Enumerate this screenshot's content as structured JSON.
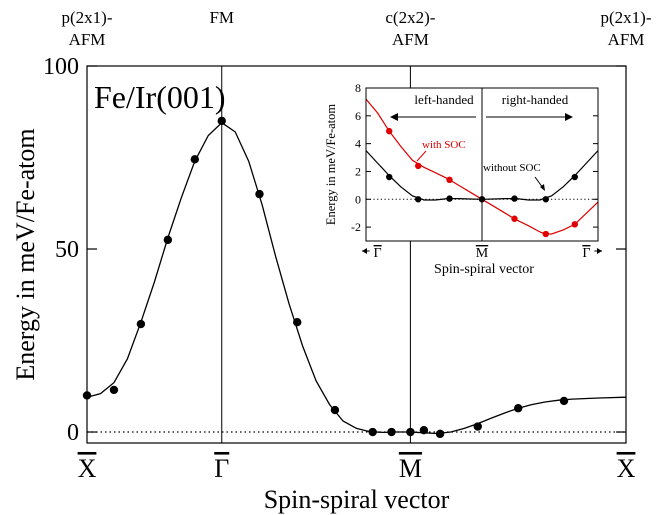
{
  "chart_data": [
    {
      "type": "line",
      "title": "Fe/Ir(001)",
      "xlabel": "Spin-spiral vector",
      "ylabel": "Energy in meV/Fe-atom",
      "ylim": [
        -3,
        100
      ],
      "yticks": [
        {
          "label": "0",
          "value": 0
        },
        {
          "label": "50",
          "value": 50
        },
        {
          "label": "100",
          "value": 100
        }
      ],
      "xlim": [
        0,
        2
      ],
      "xticks": [
        {
          "label": "X",
          "value": 0
        },
        {
          "label": "Γ",
          "value": 0.5
        },
        {
          "label": "M",
          "value": 1.2
        },
        {
          "label": "X",
          "value": 2.0
        }
      ],
      "top_labels": [
        {
          "line1": "p(2x1)-",
          "line2": "AFM",
          "value": 0
        },
        {
          "line1": "FM",
          "line2": "",
          "value": 0.5
        },
        {
          "line1": "c(2x2)-",
          "line2": "AFM",
          "value": 1.2
        },
        {
          "line1": "p(2x1)-",
          "line2": "AFM",
          "value": 2.0
        }
      ],
      "reference_line_y": 0,
      "series": [
        {
          "color": "#000000",
          "points": [
            {
              "x": 0.0,
              "y": 10
            },
            {
              "x": 0.1,
              "y": 11.5
            },
            {
              "x": 0.2,
              "y": 29.5
            },
            {
              "x": 0.3,
              "y": 52.5
            },
            {
              "x": 0.4,
              "y": 74.5
            },
            {
              "x": 0.5,
              "y": 85
            },
            {
              "x": 0.64,
              "y": 65
            },
            {
              "x": 0.78,
              "y": 30
            },
            {
              "x": 0.92,
              "y": 6
            },
            {
              "x": 1.06,
              "y": 0
            },
            {
              "x": 1.13,
              "y": 0
            },
            {
              "x": 1.2,
              "y": 0
            },
            {
              "x": 1.25,
              "y": 0.5
            },
            {
              "x": 1.31,
              "y": -0.5
            },
            {
              "x": 1.45,
              "y": 1.5
            },
            {
              "x": 1.6,
              "y": 6.5
            },
            {
              "x": 1.77,
              "y": 8.5
            }
          ],
          "curve": [
            [
              0.0,
              9.5
            ],
            [
              0.05,
              10.5
            ],
            [
              0.1,
              13.5
            ],
            [
              0.15,
              20
            ],
            [
              0.2,
              30
            ],
            [
              0.25,
              41
            ],
            [
              0.3,
              53
            ],
            [
              0.35,
              64
            ],
            [
              0.4,
              74
            ],
            [
              0.45,
              81
            ],
            [
              0.5,
              84.5
            ],
            [
              0.55,
              82
            ],
            [
              0.6,
              74
            ],
            [
              0.65,
              62
            ],
            [
              0.7,
              48
            ],
            [
              0.75,
              35
            ],
            [
              0.8,
              23.5
            ],
            [
              0.85,
              14
            ],
            [
              0.9,
              7.5
            ],
            [
              0.95,
              3
            ],
            [
              1.0,
              1
            ],
            [
              1.05,
              0.1
            ],
            [
              1.1,
              -0.1
            ],
            [
              1.15,
              0
            ],
            [
              1.2,
              0
            ],
            [
              1.25,
              -0.2
            ],
            [
              1.3,
              -0.4
            ],
            [
              1.35,
              0
            ],
            [
              1.4,
              1
            ],
            [
              1.45,
              2.3
            ],
            [
              1.5,
              3.8
            ],
            [
              1.55,
              5.2
            ],
            [
              1.6,
              6.5
            ],
            [
              1.65,
              7.5
            ],
            [
              1.7,
              8.2
            ],
            [
              1.75,
              8.7
            ],
            [
              1.8,
              9
            ],
            [
              1.9,
              9.3
            ],
            [
              2.0,
              9.5
            ]
          ]
        }
      ]
    },
    {
      "type": "line",
      "title": "",
      "xlabel": "Spin-spiral vector",
      "ylabel": "Energy in meV/Fe-atom",
      "ylim": [
        -3,
        8
      ],
      "yticks": [
        {
          "label": "8",
          "value": 8
        },
        {
          "label": "6",
          "value": 6
        },
        {
          "label": "4",
          "value": 4
        },
        {
          "label": "2",
          "value": 2
        },
        {
          "label": "0",
          "value": 0
        },
        {
          "label": "-2",
          "value": -2
        }
      ],
      "xlim": [
        -1,
        1
      ],
      "xticks": [
        {
          "label": "Γ",
          "value": -0.9
        },
        {
          "label": "M",
          "value": 0
        },
        {
          "label": "Γ",
          "value": 0.9
        }
      ],
      "region_labels": [
        {
          "text": "left-handed",
          "value": -0.52
        },
        {
          "text": "right-handed",
          "value": 0.52
        }
      ],
      "reference_line_y": 0,
      "series": [
        {
          "name": "with SOC",
          "color": "#e00000",
          "points": [
            {
              "x": -0.8,
              "y": 4.9
            },
            {
              "x": -0.55,
              "y": 2.4
            },
            {
              "x": -0.28,
              "y": 1.4
            },
            {
              "x": 0.0,
              "y": 0.0
            },
            {
              "x": 0.28,
              "y": -1.4
            },
            {
              "x": 0.55,
              "y": -2.5
            },
            {
              "x": 0.8,
              "y": -1.8
            }
          ],
          "curve": [
            [
              -1.0,
              7.2
            ],
            [
              -0.9,
              6.2
            ],
            [
              -0.8,
              4.9
            ],
            [
              -0.7,
              3.8
            ],
            [
              -0.6,
              2.8
            ],
            [
              -0.5,
              2.3
            ],
            [
              -0.4,
              1.9
            ],
            [
              -0.3,
              1.5
            ],
            [
              -0.2,
              1.0
            ],
            [
              -0.1,
              0.5
            ],
            [
              0.0,
              0.0
            ],
            [
              0.1,
              -0.5
            ],
            [
              0.2,
              -1.0
            ],
            [
              0.3,
              -1.5
            ],
            [
              0.4,
              -1.9
            ],
            [
              0.5,
              -2.35
            ],
            [
              0.55,
              -2.5
            ],
            [
              0.6,
              -2.5
            ],
            [
              0.7,
              -2.2
            ],
            [
              0.8,
              -1.8
            ],
            [
              0.9,
              -1.0
            ],
            [
              1.0,
              -0.2
            ]
          ]
        },
        {
          "name": "without SOC",
          "color": "#000000",
          "points": [
            {
              "x": -0.8,
              "y": 1.6
            },
            {
              "x": -0.55,
              "y": 0.0
            },
            {
              "x": -0.28,
              "y": 0.05
            },
            {
              "x": 0.0,
              "y": 0.0
            },
            {
              "x": 0.28,
              "y": 0.05
            },
            {
              "x": 0.55,
              "y": 0.0
            },
            {
              "x": 0.8,
              "y": 1.6
            }
          ],
          "curve": [
            [
              -1.0,
              3.5
            ],
            [
              -0.9,
              2.6
            ],
            [
              -0.8,
              1.7
            ],
            [
              -0.7,
              0.9
            ],
            [
              -0.6,
              0.25
            ],
            [
              -0.5,
              -0.05
            ],
            [
              -0.4,
              -0.05
            ],
            [
              -0.3,
              0.05
            ],
            [
              -0.2,
              0.05
            ],
            [
              -0.1,
              0.02
            ],
            [
              0.0,
              0.0
            ],
            [
              0.1,
              0.02
            ],
            [
              0.2,
              0.05
            ],
            [
              0.3,
              0.05
            ],
            [
              0.4,
              -0.05
            ],
            [
              0.5,
              -0.05
            ],
            [
              0.6,
              0.25
            ],
            [
              0.7,
              0.9
            ],
            [
              0.8,
              1.7
            ],
            [
              0.9,
              2.6
            ],
            [
              1.0,
              3.5
            ]
          ]
        }
      ]
    }
  ]
}
